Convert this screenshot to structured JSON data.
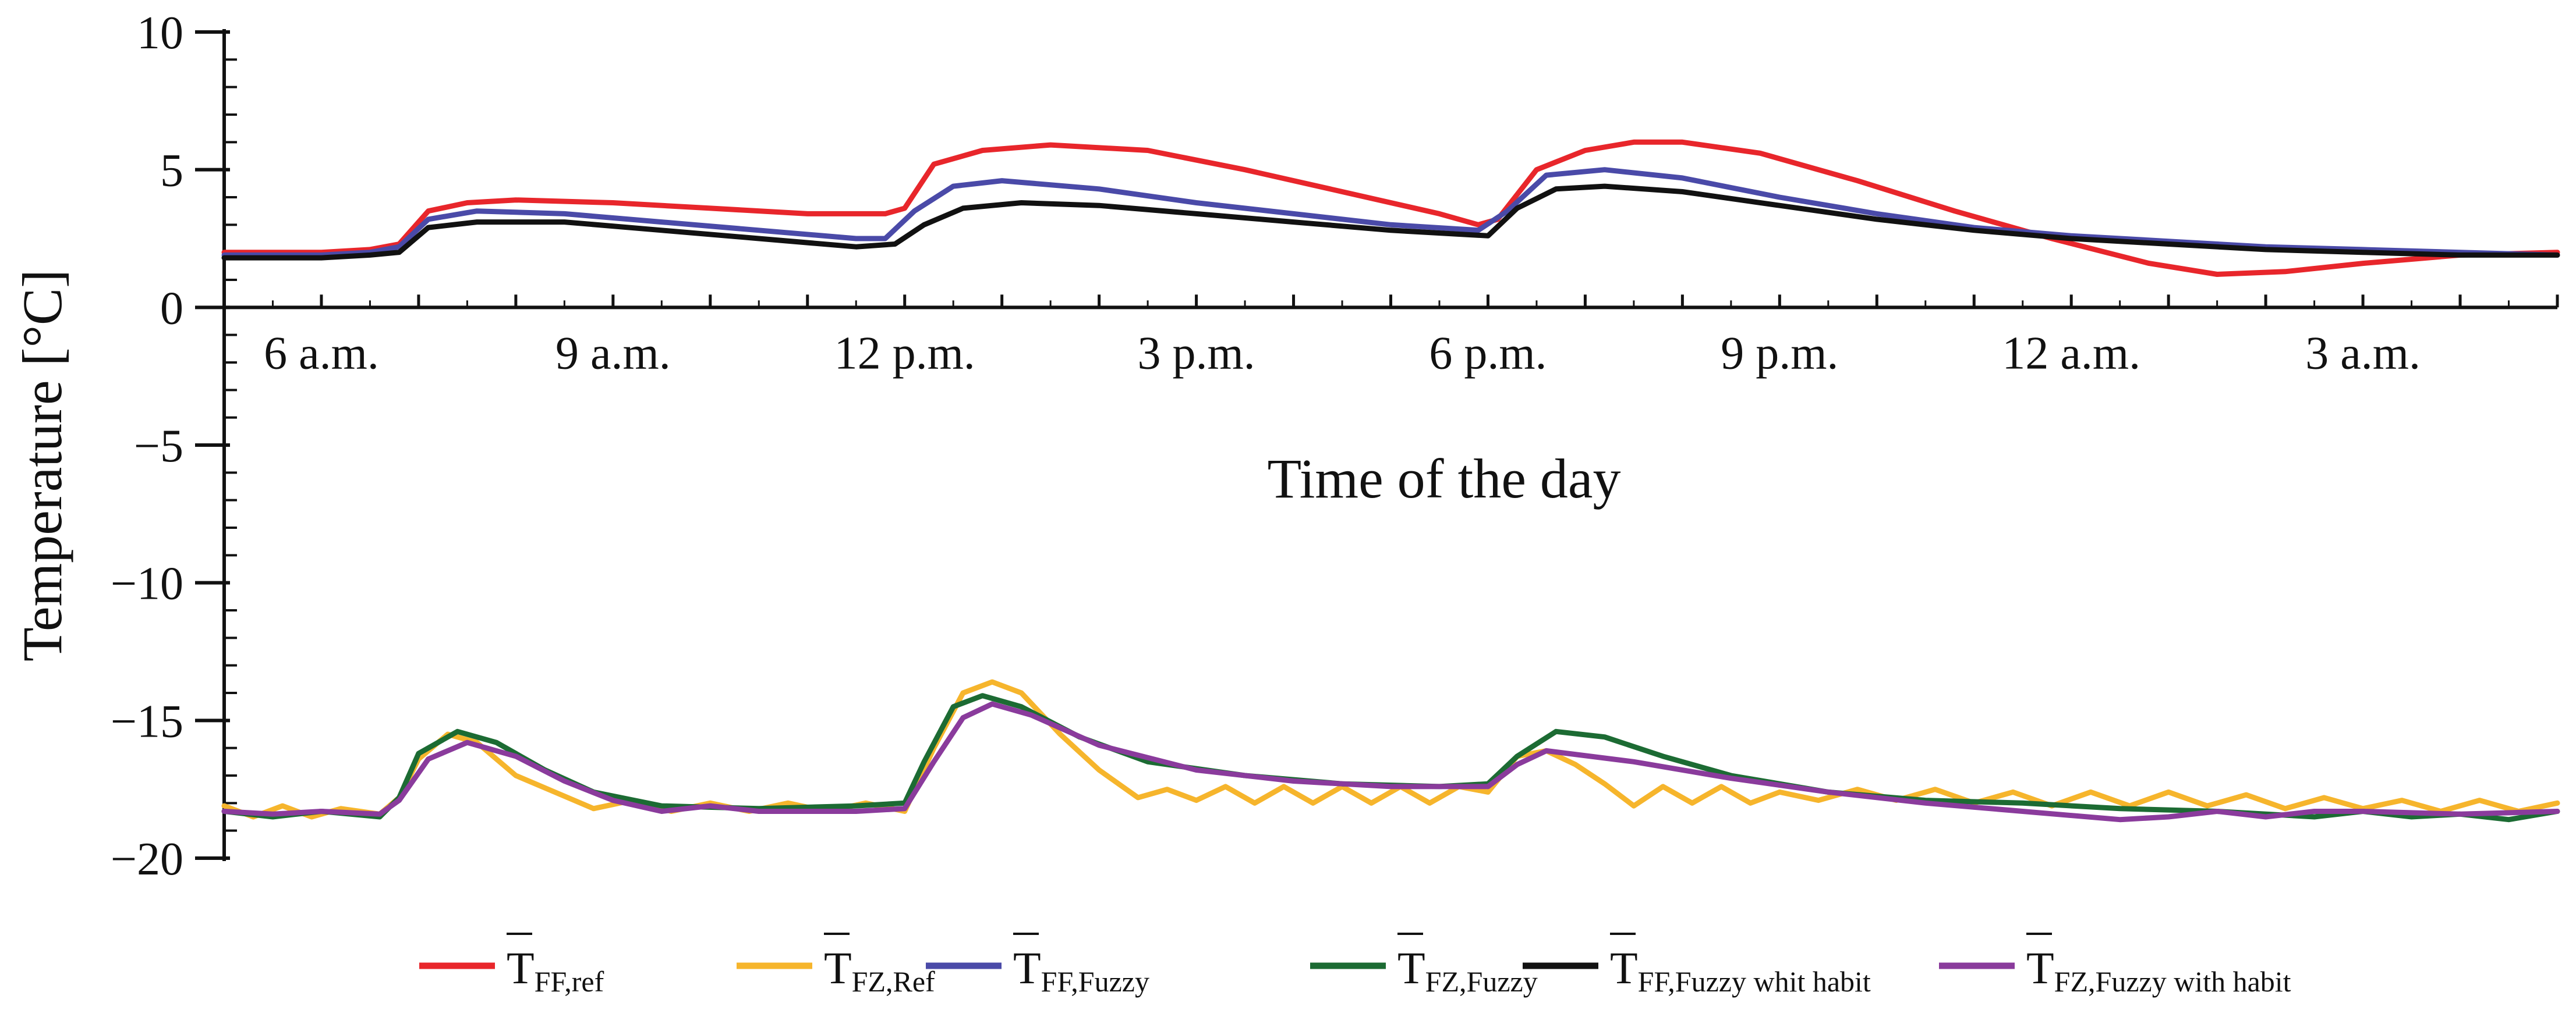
{
  "chart_data": {
    "type": "line",
    "title": "",
    "xlabel": "Time of the day",
    "ylabel": "Temperature [°C]",
    "ylim": [
      -20,
      10
    ],
    "xlim": [
      5,
      29
    ],
    "x_unit": "hours since midnight (continues past 24 into the next day)",
    "y_ticks": [
      {
        "value": 10,
        "label": "10"
      },
      {
        "value": 5,
        "label": "5"
      },
      {
        "value": 0,
        "label": "0"
      },
      {
        "value": -5,
        "label": "−5"
      },
      {
        "value": -10,
        "label": "−10"
      },
      {
        "value": -15,
        "label": "−15"
      },
      {
        "value": -20,
        "label": "−20"
      }
    ],
    "x_ticks": [
      {
        "value": 6,
        "label": "6 a.m."
      },
      {
        "value": 9,
        "label": "9 a.m."
      },
      {
        "value": 12,
        "label": "12 p.m."
      },
      {
        "value": 15,
        "label": "3 p.m."
      },
      {
        "value": 18,
        "label": "6 p.m."
      },
      {
        "value": 21,
        "label": "9 p.m."
      },
      {
        "value": 24,
        "label": "12 a.m."
      },
      {
        "value": 27,
        "label": "3 a.m."
      }
    ],
    "legend_position": "bottom",
    "series": [
      {
        "name": "T̄ FF,ref",
        "symbol": "T",
        "subscript": "FF,ref",
        "color": "#e8262b",
        "points": [
          [
            5,
            2.0
          ],
          [
            6,
            2.0
          ],
          [
            6.5,
            2.1
          ],
          [
            6.8,
            2.3
          ],
          [
            7.1,
            3.5
          ],
          [
            7.5,
            3.8
          ],
          [
            8,
            3.9
          ],
          [
            9,
            3.8
          ],
          [
            10,
            3.6
          ],
          [
            11,
            3.4
          ],
          [
            11.8,
            3.4
          ],
          [
            12,
            3.6
          ],
          [
            12.3,
            5.2
          ],
          [
            12.8,
            5.7
          ],
          [
            13.5,
            5.9
          ],
          [
            14.5,
            5.7
          ],
          [
            15.5,
            5.0
          ],
          [
            16.5,
            4.2
          ],
          [
            17.5,
            3.4
          ],
          [
            17.9,
            3.0
          ],
          [
            18.1,
            3.2
          ],
          [
            18.5,
            5.0
          ],
          [
            19,
            5.7
          ],
          [
            19.5,
            6.0
          ],
          [
            20,
            6.0
          ],
          [
            20.8,
            5.6
          ],
          [
            21.8,
            4.6
          ],
          [
            22.8,
            3.5
          ],
          [
            23.8,
            2.5
          ],
          [
            24.8,
            1.6
          ],
          [
            25.5,
            1.2
          ],
          [
            26.2,
            1.3
          ],
          [
            27,
            1.6
          ],
          [
            28,
            1.9
          ],
          [
            29,
            2.0
          ]
        ]
      },
      {
        "name": "T̄ FZ,Ref",
        "symbol": "T",
        "subscript": "FZ,Ref",
        "color": "#f6b52c",
        "points": [
          [
            5,
            -18.1
          ],
          [
            5.3,
            -18.5
          ],
          [
            5.6,
            -18.1
          ],
          [
            5.9,
            -18.5
          ],
          [
            6.2,
            -18.2
          ],
          [
            6.6,
            -18.4
          ],
          [
            6.8,
            -17.8
          ],
          [
            7.0,
            -16.4
          ],
          [
            7.3,
            -15.5
          ],
          [
            7.6,
            -15.8
          ],
          [
            8.0,
            -17.0
          ],
          [
            8.4,
            -17.6
          ],
          [
            8.8,
            -18.2
          ],
          [
            9.2,
            -17.9
          ],
          [
            9.6,
            -18.3
          ],
          [
            10,
            -18.0
          ],
          [
            10.4,
            -18.3
          ],
          [
            10.8,
            -18.0
          ],
          [
            11.2,
            -18.3
          ],
          [
            11.6,
            -18.0
          ],
          [
            12.0,
            -18.3
          ],
          [
            12.3,
            -16.0
          ],
          [
            12.6,
            -14.0
          ],
          [
            12.9,
            -13.6
          ],
          [
            13.2,
            -14.0
          ],
          [
            13.6,
            -15.5
          ],
          [
            14,
            -16.8
          ],
          [
            14.4,
            -17.8
          ],
          [
            14.7,
            -17.5
          ],
          [
            15,
            -17.9
          ],
          [
            15.3,
            -17.4
          ],
          [
            15.6,
            -18.0
          ],
          [
            15.9,
            -17.4
          ],
          [
            16.2,
            -18.0
          ],
          [
            16.5,
            -17.4
          ],
          [
            16.8,
            -18.0
          ],
          [
            17.1,
            -17.4
          ],
          [
            17.4,
            -18.0
          ],
          [
            17.7,
            -17.4
          ],
          [
            18,
            -17.6
          ],
          [
            18.3,
            -16.3
          ],
          [
            18.6,
            -16.1
          ],
          [
            18.9,
            -16.6
          ],
          [
            19.2,
            -17.3
          ],
          [
            19.5,
            -18.1
          ],
          [
            19.8,
            -17.4
          ],
          [
            20.1,
            -18.0
          ],
          [
            20.4,
            -17.4
          ],
          [
            20.7,
            -18.0
          ],
          [
            21,
            -17.6
          ],
          [
            21.4,
            -17.9
          ],
          [
            21.8,
            -17.5
          ],
          [
            22.2,
            -17.9
          ],
          [
            22.6,
            -17.5
          ],
          [
            23,
            -18.0
          ],
          [
            23.4,
            -17.6
          ],
          [
            23.8,
            -18.1
          ],
          [
            24.2,
            -17.6
          ],
          [
            24.6,
            -18.1
          ],
          [
            25,
            -17.6
          ],
          [
            25.4,
            -18.1
          ],
          [
            25.8,
            -17.7
          ],
          [
            26.2,
            -18.2
          ],
          [
            26.6,
            -17.8
          ],
          [
            27,
            -18.2
          ],
          [
            27.4,
            -17.9
          ],
          [
            27.8,
            -18.3
          ],
          [
            28.2,
            -17.9
          ],
          [
            28.6,
            -18.3
          ],
          [
            29,
            -18.0
          ]
        ]
      },
      {
        "name": "T̄ FF,Fuzzy",
        "symbol": "T",
        "subscript": "FF,Fuzzy",
        "color": "#4a4aa8",
        "points": [
          [
            5,
            1.9
          ],
          [
            6,
            1.9
          ],
          [
            6.5,
            2.0
          ],
          [
            6.8,
            2.2
          ],
          [
            7.1,
            3.2
          ],
          [
            7.6,
            3.5
          ],
          [
            8.5,
            3.4
          ],
          [
            9.5,
            3.1
          ],
          [
            10.5,
            2.8
          ],
          [
            11.5,
            2.5
          ],
          [
            11.8,
            2.5
          ],
          [
            12.1,
            3.5
          ],
          [
            12.5,
            4.4
          ],
          [
            13,
            4.6
          ],
          [
            14,
            4.3
          ],
          [
            15,
            3.8
          ],
          [
            16,
            3.4
          ],
          [
            17,
            3.0
          ],
          [
            17.9,
            2.8
          ],
          [
            18.2,
            3.5
          ],
          [
            18.6,
            4.8
          ],
          [
            19.2,
            5.0
          ],
          [
            20,
            4.7
          ],
          [
            21,
            4.0
          ],
          [
            22,
            3.4
          ],
          [
            23,
            2.9
          ],
          [
            24,
            2.6
          ],
          [
            25,
            2.4
          ],
          [
            26,
            2.2
          ],
          [
            27,
            2.1
          ],
          [
            28,
            2.0
          ],
          [
            29,
            1.9
          ]
        ]
      },
      {
        "name": "T̄ FZ,Fuzzy",
        "symbol": "T",
        "subscript": "FZ,Fuzzy",
        "color": "#1c6b33",
        "points": [
          [
            5,
            -18.3
          ],
          [
            5.5,
            -18.5
          ],
          [
            6,
            -18.3
          ],
          [
            6.6,
            -18.5
          ],
          [
            6.8,
            -17.8
          ],
          [
            7.0,
            -16.2
          ],
          [
            7.4,
            -15.4
          ],
          [
            7.8,
            -15.8
          ],
          [
            8.3,
            -16.8
          ],
          [
            8.8,
            -17.6
          ],
          [
            9.5,
            -18.1
          ],
          [
            10.5,
            -18.2
          ],
          [
            11.5,
            -18.1
          ],
          [
            12.0,
            -18.0
          ],
          [
            12.2,
            -16.5
          ],
          [
            12.5,
            -14.5
          ],
          [
            12.8,
            -14.1
          ],
          [
            13.2,
            -14.5
          ],
          [
            13.8,
            -15.6
          ],
          [
            14.5,
            -16.5
          ],
          [
            15.5,
            -17.0
          ],
          [
            16.5,
            -17.3
          ],
          [
            17.5,
            -17.4
          ],
          [
            18.0,
            -17.3
          ],
          [
            18.3,
            -16.3
          ],
          [
            18.7,
            -15.4
          ],
          [
            19.2,
            -15.6
          ],
          [
            19.8,
            -16.3
          ],
          [
            20.5,
            -17.0
          ],
          [
            21.5,
            -17.6
          ],
          [
            22.5,
            -17.9
          ],
          [
            23.5,
            -18.0
          ],
          [
            24.5,
            -18.2
          ],
          [
            25.5,
            -18.3
          ],
          [
            26.5,
            -18.5
          ],
          [
            27,
            -18.3
          ],
          [
            27.5,
            -18.5
          ],
          [
            28,
            -18.4
          ],
          [
            28.5,
            -18.6
          ],
          [
            29,
            -18.3
          ]
        ]
      },
      {
        "name": "T̄ FF,Fuzzy whit habit",
        "symbol": "T",
        "subscript": "FF,Fuzzy whit habit",
        "color": "#111111",
        "points": [
          [
            5,
            1.8
          ],
          [
            6,
            1.8
          ],
          [
            6.5,
            1.9
          ],
          [
            6.8,
            2.0
          ],
          [
            7.1,
            2.9
          ],
          [
            7.6,
            3.1
          ],
          [
            8.5,
            3.1
          ],
          [
            9.5,
            2.8
          ],
          [
            10.5,
            2.5
          ],
          [
            11.5,
            2.2
          ],
          [
            11.9,
            2.3
          ],
          [
            12.2,
            3.0
          ],
          [
            12.6,
            3.6
          ],
          [
            13.2,
            3.8
          ],
          [
            14,
            3.7
          ],
          [
            15,
            3.4
          ],
          [
            16,
            3.1
          ],
          [
            17,
            2.8
          ],
          [
            18,
            2.6
          ],
          [
            18.3,
            3.6
          ],
          [
            18.7,
            4.3
          ],
          [
            19.2,
            4.4
          ],
          [
            20,
            4.2
          ],
          [
            21,
            3.7
          ],
          [
            22,
            3.2
          ],
          [
            23,
            2.8
          ],
          [
            24,
            2.5
          ],
          [
            25,
            2.3
          ],
          [
            26,
            2.1
          ],
          [
            27,
            2.0
          ],
          [
            28,
            1.9
          ],
          [
            29,
            1.9
          ]
        ]
      },
      {
        "name": "T̄ FZ,Fuzzy with habit",
        "symbol": "T",
        "subscript": "FZ,Fuzzy with habit",
        "color": "#8a3b9c",
        "points": [
          [
            5,
            -18.3
          ],
          [
            5.5,
            -18.4
          ],
          [
            6,
            -18.3
          ],
          [
            6.6,
            -18.4
          ],
          [
            6.8,
            -17.9
          ],
          [
            7.1,
            -16.4
          ],
          [
            7.5,
            -15.8
          ],
          [
            8,
            -16.3
          ],
          [
            8.5,
            -17.2
          ],
          [
            9,
            -17.9
          ],
          [
            9.5,
            -18.3
          ],
          [
            10,
            -18.1
          ],
          [
            10.5,
            -18.3
          ],
          [
            11.5,
            -18.3
          ],
          [
            12.0,
            -18.2
          ],
          [
            12.3,
            -16.5
          ],
          [
            12.6,
            -14.9
          ],
          [
            12.9,
            -14.4
          ],
          [
            13.3,
            -14.8
          ],
          [
            14,
            -15.9
          ],
          [
            15,
            -16.8
          ],
          [
            16,
            -17.2
          ],
          [
            17,
            -17.4
          ],
          [
            18,
            -17.4
          ],
          [
            18.3,
            -16.6
          ],
          [
            18.6,
            -16.1
          ],
          [
            19.5,
            -16.5
          ],
          [
            20.5,
            -17.1
          ],
          [
            21.5,
            -17.6
          ],
          [
            22.5,
            -18.0
          ],
          [
            23.5,
            -18.3
          ],
          [
            24.5,
            -18.6
          ],
          [
            25,
            -18.5
          ],
          [
            25.5,
            -18.3
          ],
          [
            26,
            -18.5
          ],
          [
            26.5,
            -18.3
          ],
          [
            27,
            -18.3
          ],
          [
            28,
            -18.4
          ],
          [
            29,
            -18.3
          ]
        ]
      }
    ]
  }
}
